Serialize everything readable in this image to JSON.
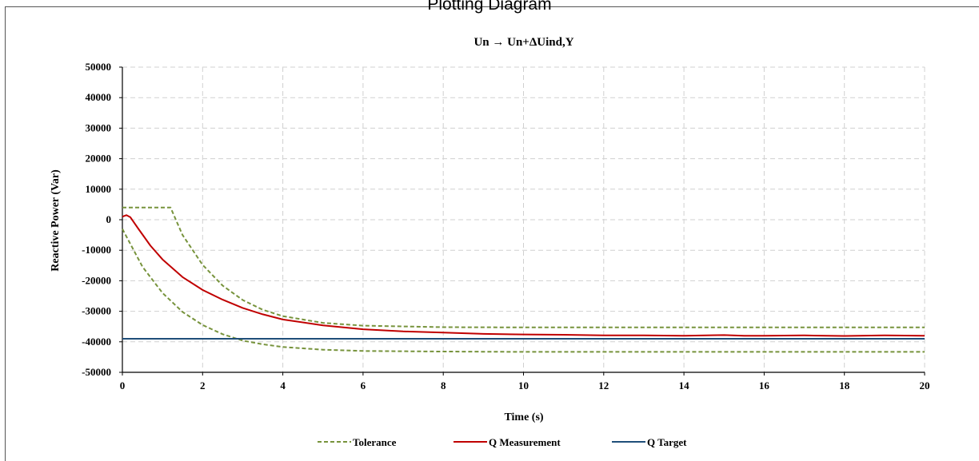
{
  "window": {
    "title": "Plotting Diagram"
  },
  "chart_data": {
    "type": "line",
    "title": "Un → Un+ΔUind,Y",
    "xlabel": "Time (s)",
    "ylabel": "Reactive Power (Var)",
    "xlim": [
      0,
      20
    ],
    "ylim": [
      -50000,
      50000
    ],
    "xticks": [
      0,
      2,
      4,
      6,
      8,
      10,
      12,
      14,
      16,
      18,
      20
    ],
    "yticks": [
      50000,
      40000,
      30000,
      20000,
      10000,
      0,
      -10000,
      -20000,
      -30000,
      -40000,
      -50000
    ],
    "grid": true,
    "legend_position": "bottom",
    "series": [
      {
        "name": "Tolerance",
        "color": "#77933c",
        "dash": true,
        "x": [
          0,
          1.2,
          1.5,
          2,
          2.5,
          3,
          3.5,
          4,
          5,
          6,
          8,
          10,
          12,
          14,
          16,
          18,
          20
        ],
        "y": [
          4000,
          4000,
          -5000,
          -14800,
          -21600,
          -26300,
          -29500,
          -31600,
          -33800,
          -34700,
          -35200,
          -35300,
          -35300,
          -35300,
          -35300,
          -35300,
          -35300
        ]
      },
      {
        "name": "Tolerance (lower)",
        "color": "#77933c",
        "dash": true,
        "x": [
          0,
          0.5,
          1,
          1.5,
          2,
          2.5,
          3,
          3.5,
          4,
          5,
          6,
          8,
          10,
          12,
          14,
          16,
          18,
          20
        ],
        "y": [
          -3000,
          -15400,
          -24000,
          -30200,
          -34500,
          -37500,
          -39600,
          -40800,
          -41700,
          -42600,
          -43000,
          -43200,
          -43300,
          -43300,
          -43300,
          -43300,
          -43300,
          -43300
        ]
      },
      {
        "name": "Q Measurement",
        "color": "#c00000",
        "dash": false,
        "x": [
          0,
          0.1,
          0.2,
          0.4,
          0.7,
          1,
          1.5,
          2,
          2.5,
          3,
          3.5,
          4,
          5,
          6,
          7,
          8,
          9,
          10,
          11,
          12,
          13,
          14,
          15,
          15.5,
          16,
          17,
          18,
          19,
          20
        ],
        "y": [
          1000,
          1500,
          800,
          -3000,
          -8500,
          -13000,
          -18800,
          -23000,
          -26200,
          -28900,
          -31000,
          -32700,
          -34600,
          -35900,
          -36600,
          -37000,
          -37400,
          -37600,
          -37700,
          -37900,
          -37900,
          -38000,
          -37800,
          -38000,
          -38000,
          -37900,
          -38100,
          -37900,
          -38000
        ]
      },
      {
        "name": "Q Target",
        "color": "#1f4e79",
        "dash": false,
        "x": [
          0,
          20
        ],
        "y": [
          -39000,
          -39000
        ]
      }
    ],
    "legend": [
      {
        "label": "Tolerance",
        "color": "#77933c",
        "dash": true
      },
      {
        "label": "Q Measurement",
        "color": "#c00000",
        "dash": false
      },
      {
        "label": "Q Target",
        "color": "#1f4e79",
        "dash": false
      }
    ]
  }
}
